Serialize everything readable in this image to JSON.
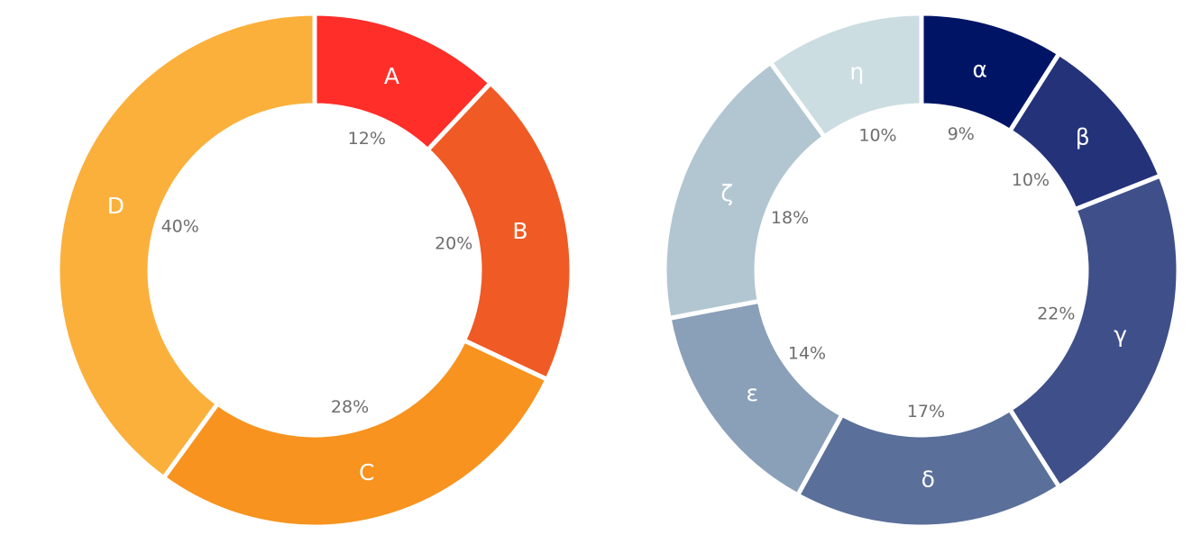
{
  "chart_data": [
    {
      "type": "donut",
      "labels": [
        "A",
        "B",
        "C",
        "D"
      ],
      "values": [
        12,
        20,
        28,
        40
      ],
      "percent_labels": [
        "12%",
        "20%",
        "28%",
        "40%"
      ],
      "colors": [
        "#ff2e28",
        "#f05a24",
        "#f7931e",
        "#fbb03b"
      ],
      "start": "top",
      "direction": "clockwise",
      "legend": "none"
    },
    {
      "type": "donut",
      "labels": [
        "α",
        "β",
        "γ",
        "δ",
        "ε",
        "ζ",
        "η"
      ],
      "values": [
        9,
        10,
        22,
        17,
        14,
        18,
        10
      ],
      "percent_labels": [
        "9%",
        "10%",
        "22%",
        "17%",
        "14%",
        "18%",
        "10%"
      ],
      "colors": [
        "#001466",
        "#24327a",
        "#3f4f8a",
        "#5a6f9a",
        "#8a9fb8",
        "#b2c6d1",
        "#cbdde1"
      ],
      "start": "top",
      "direction": "clockwise",
      "legend": "none"
    }
  ]
}
